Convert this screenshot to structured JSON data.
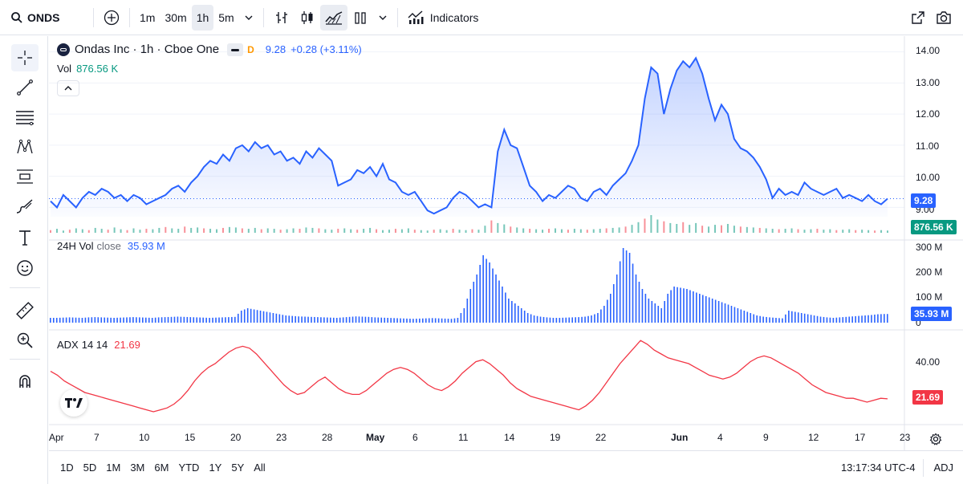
{
  "toolbar": {
    "symbol": "ONDS",
    "intervals": [
      "1m",
      "30m",
      "1h",
      "5m"
    ],
    "active_interval": "1h",
    "indicators_label": "Indicators"
  },
  "legend": {
    "title": "Ondas Inc · 1h · Cboe One",
    "badge": "D",
    "price": "9.28",
    "change": "+0.28 (+3.11%)",
    "vol_label": "Vol",
    "vol_value": "876.56 K",
    "vol24_label": "24H Vol",
    "vol24_sub": "close",
    "vol24_value": "35.93 M",
    "adx_label": "ADX",
    "adx_params": "14 14",
    "adx_value": "21.69"
  },
  "price_axis": [
    "14.00",
    "13.00",
    "12.00",
    "11.00",
    "10.00",
    "9.00"
  ],
  "price_tag": "9.28",
  "vol_tag": "876.56 K",
  "vol24_axis": [
    "300 M",
    "200 M",
    "100 M",
    "0"
  ],
  "vol24_tag": "35.93 M",
  "adx_axis": [
    "40.00"
  ],
  "adx_tag": "21.69",
  "time_axis": [
    "Apr",
    "7",
    "10",
    "15",
    "20",
    "23",
    "28",
    "May",
    "6",
    "11",
    "14",
    "19",
    "22",
    "Jun",
    "4",
    "9",
    "12",
    "17",
    "23"
  ],
  "ranges": [
    "1D",
    "5D",
    "1M",
    "3M",
    "6M",
    "YTD",
    "1Y",
    "5Y",
    "All"
  ],
  "clock": "13:17:34 UTC-4",
  "adj": "ADJ",
  "colors": {
    "line": "#2962ff",
    "adx": "#f23645",
    "up": "#089981",
    "down": "#f23645"
  },
  "chart_data": [
    {
      "type": "area",
      "title": "Ondas Inc · 1h · Cboe One",
      "ylim": [
        8.7,
        14.3
      ],
      "series": [
        {
          "name": "ONDS",
          "values": [
            9.2,
            9.0,
            9.4,
            9.2,
            9.0,
            9.3,
            9.5,
            9.4,
            9.6,
            9.5,
            9.3,
            9.4,
            9.2,
            9.4,
            9.3,
            9.1,
            9.2,
            9.3,
            9.4,
            9.6,
            9.7,
            9.5,
            9.8,
            10.0,
            10.3,
            10.5,
            10.4,
            10.7,
            10.5,
            10.9,
            11.0,
            10.8,
            11.1,
            10.9,
            11.0,
            10.7,
            10.8,
            10.5,
            10.6,
            10.4,
            10.8,
            10.6,
            10.9,
            10.7,
            10.5,
            9.7,
            9.8,
            9.9,
            10.2,
            10.1,
            10.3,
            10.0,
            10.4,
            9.9,
            9.8,
            9.5,
            9.4,
            9.5,
            9.2,
            8.9,
            8.8,
            8.9,
            9.0,
            9.3,
            9.5,
            9.4,
            9.2,
            9.0,
            9.1,
            9.0,
            10.8,
            11.5,
            11.0,
            10.9,
            10.3,
            9.7,
            9.5,
            9.2,
            9.4,
            9.3,
            9.5,
            9.7,
            9.6,
            9.3,
            9.2,
            9.5,
            9.6,
            9.4,
            9.7,
            9.9,
            10.1,
            10.5,
            11.0,
            12.5,
            13.5,
            13.3,
            12.0,
            12.8,
            13.4,
            13.7,
            13.5,
            13.8,
            13.3,
            12.5,
            11.8,
            12.3,
            12.0,
            11.2,
            10.9,
            10.8,
            10.6,
            10.3,
            9.9,
            9.3,
            9.6,
            9.4,
            9.5,
            9.4,
            9.8,
            9.6,
            9.5,
            9.4,
            9.5,
            9.6,
            9.3,
            9.4,
            9.3,
            9.2,
            9.4,
            9.2,
            9.1,
            9.28
          ]
        }
      ]
    },
    {
      "type": "bar",
      "title": "Vol",
      "values": [
        30,
        45,
        25,
        35,
        50,
        40,
        30,
        55,
        45,
        35,
        60,
        40,
        30,
        50,
        35,
        45,
        40,
        55,
        65,
        50,
        45,
        70,
        55,
        60,
        50,
        45,
        40,
        55,
        65,
        60,
        50,
        45,
        55,
        40,
        50,
        45,
        35,
        40,
        50,
        45,
        60,
        55,
        50,
        40,
        35,
        45,
        50,
        40,
        35,
        45,
        55,
        40,
        30,
        35,
        45,
        40,
        50,
        35,
        30,
        25,
        35,
        40,
        30,
        45,
        35,
        30,
        40,
        35,
        80,
        140,
        110,
        95,
        70,
        60,
        50,
        45,
        40,
        35,
        45,
        50,
        40,
        35,
        45,
        40,
        35,
        40,
        45,
        50,
        55,
        60,
        70,
        90,
        120,
        160,
        200,
        150,
        130,
        110,
        100,
        120,
        90,
        110,
        80,
        70,
        90,
        85,
        100,
        80,
        70,
        65,
        60,
        55,
        50,
        45,
        40,
        45,
        50,
        40,
        35,
        40,
        45,
        35,
        40,
        30,
        35,
        40,
        30,
        35,
        30,
        25,
        30,
        25
      ],
      "ylim": [
        0,
        200
      ]
    },
    {
      "type": "bar",
      "title": "24H Vol",
      "values": [
        20,
        20,
        21,
        22,
        21,
        20,
        22,
        23,
        22,
        21,
        20,
        21,
        22,
        23,
        22,
        21,
        20,
        22,
        23,
        24,
        25,
        24,
        23,
        22,
        21,
        20,
        21,
        22,
        23,
        24,
        50,
        60,
        55,
        50,
        45,
        40,
        35,
        30,
        28,
        26,
        25,
        24,
        23,
        22,
        21,
        20,
        22,
        24,
        26,
        25,
        24,
        22,
        21,
        20,
        19,
        18,
        17,
        16,
        17,
        18,
        19,
        18,
        17,
        16,
        20,
        60,
        140,
        200,
        280,
        250,
        200,
        150,
        100,
        80,
        60,
        40,
        30,
        25,
        22,
        20,
        20,
        21,
        22,
        23,
        25,
        30,
        40,
        70,
        120,
        200,
        310,
        290,
        200,
        140,
        100,
        80,
        60,
        120,
        150,
        145,
        140,
        130,
        120,
        110,
        100,
        90,
        80,
        70,
        60,
        50,
        40,
        30,
        25,
        22,
        20,
        18,
        50,
        45,
        40,
        35,
        30,
        25,
        22,
        20,
        22,
        24,
        26,
        28,
        30,
        32,
        35,
        36
      ],
      "ylim": [
        0,
        330
      ]
    },
    {
      "type": "line",
      "title": "ADX 14 14",
      "ylim": [
        10,
        55
      ],
      "series": [
        {
          "name": "ADX",
          "values": [
            36,
            34,
            31,
            29,
            27,
            25,
            24,
            23,
            22,
            21,
            20,
            19,
            18,
            17,
            16,
            15,
            16,
            17,
            19,
            22,
            26,
            31,
            35,
            38,
            40,
            43,
            46,
            48,
            49,
            48,
            45,
            41,
            37,
            33,
            29,
            26,
            24,
            25,
            28,
            31,
            33,
            30,
            27,
            25,
            24,
            24,
            26,
            29,
            32,
            35,
            37,
            38,
            37,
            35,
            32,
            29,
            27,
            26,
            28,
            31,
            35,
            38,
            41,
            42,
            40,
            37,
            34,
            30,
            27,
            25,
            23,
            22,
            21,
            20,
            19,
            18,
            17,
            16,
            18,
            21,
            25,
            30,
            35,
            40,
            44,
            48,
            52,
            50,
            47,
            45,
            43,
            42,
            41,
            40,
            38,
            36,
            34,
            33,
            32,
            33,
            35,
            38,
            41,
            43,
            44,
            43,
            41,
            39,
            37,
            35,
            32,
            29,
            27,
            25,
            24,
            23,
            22,
            22,
            21,
            20,
            21,
            22,
            21.69
          ]
        }
      ]
    }
  ]
}
